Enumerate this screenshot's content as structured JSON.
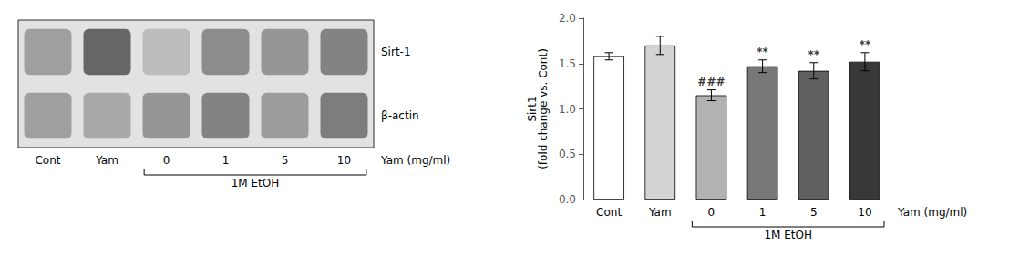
{
  "chart_data": [
    {
      "type": "heatmap",
      "categories": [
        "Cont",
        "Yam",
        "0",
        "1",
        "5",
        "10"
      ],
      "rows": [
        "Sirt-1",
        "β-actin"
      ],
      "cells": [
        [
          0.5,
          0.8,
          0.35,
          0.6,
          0.55,
          0.65
        ],
        [
          0.5,
          0.45,
          0.55,
          0.65,
          0.52,
          0.68
        ]
      ],
      "xlabel": "Yam (mg/ml)",
      "group_label": {
        "text": "1M EtOH",
        "from": "0",
        "to": "10"
      }
    },
    {
      "type": "bar",
      "categories": [
        "Cont",
        "Yam",
        "0",
        "1",
        "5",
        "10"
      ],
      "values": [
        1.58,
        1.7,
        1.15,
        1.47,
        1.42,
        1.52
      ],
      "errors": [
        0.04,
        0.1,
        0.06,
        0.07,
        0.09,
        0.1
      ],
      "colors": [
        "#ffffff",
        "#d3d3d3",
        "#b2b2b2",
        "#787878",
        "#606060",
        "#383838"
      ],
      "ylabel": "Sirt1\n(fold change vs. Cont)",
      "ylim": [
        0,
        2.0
      ],
      "yticks": [
        {
          "value": 0,
          "label": "0.0"
        },
        0.5,
        {
          "value": 1.0,
          "label": "1.0"
        },
        1.5,
        {
          "value": 2.0,
          "label": "2.0"
        }
      ],
      "grid": false,
      "xlabel": "Yam (mg/ml)",
      "annotations": [
        {
          "text": "###",
          "category": "0"
        },
        {
          "text": "**",
          "category": "1"
        },
        {
          "text": "**",
          "category": "5"
        },
        {
          "text": "**",
          "category": "10"
        }
      ],
      "group_label": {
        "text": "1M EtOH",
        "from": "0",
        "to": "10"
      }
    }
  ]
}
